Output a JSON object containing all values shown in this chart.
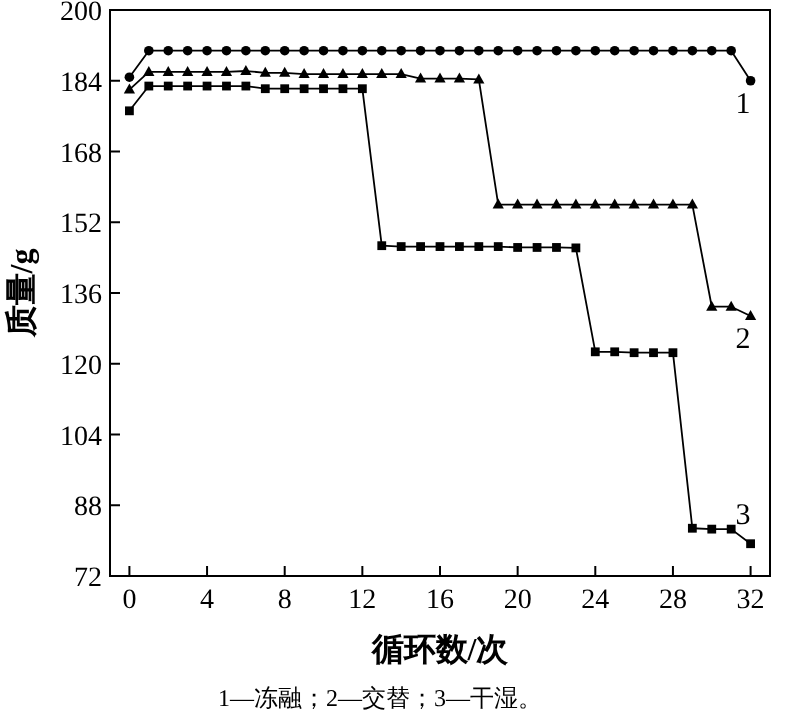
{
  "chart_data": {
    "type": "line",
    "xlabel": "循环数/次",
    "ylabel": "质量/g",
    "xlim": [
      -1,
      33
    ],
    "xticks": [
      0,
      4,
      8,
      12,
      16,
      20,
      24,
      28,
      32
    ],
    "ylim": [
      72,
      200
    ],
    "yticks": [
      72,
      88,
      104,
      120,
      136,
      152,
      168,
      184,
      200
    ],
    "grid": false,
    "line_style": "solid",
    "x": [
      0,
      1,
      2,
      3,
      4,
      5,
      6,
      7,
      8,
      9,
      10,
      11,
      12,
      13,
      14,
      15,
      16,
      17,
      18,
      19,
      20,
      21,
      22,
      23,
      24,
      25,
      26,
      27,
      28,
      29,
      30,
      31,
      32
    ],
    "series": [
      {
        "name": "1",
        "color": "#000000",
        "marker": "circle",
        "values": [
          184.8,
          190.8,
          190.8,
          190.8,
          190.8,
          190.8,
          190.8,
          190.8,
          190.8,
          190.8,
          190.8,
          190.8,
          190.8,
          190.8,
          190.8,
          190.8,
          190.8,
          190.8,
          190.8,
          190.8,
          190.8,
          190.8,
          190.8,
          190.8,
          190.8,
          190.8,
          190.8,
          190.8,
          190.8,
          190.8,
          190.8,
          190.8,
          184
        ]
      },
      {
        "name": "2",
        "color": "#000000",
        "marker": "triangle",
        "values": [
          182,
          186,
          186,
          186,
          186,
          186,
          186.2,
          185.8,
          185.8,
          185.5,
          185.5,
          185.5,
          185.5,
          185.5,
          185.5,
          184.5,
          184.5,
          184.5,
          184.3,
          156,
          156,
          156,
          156,
          156,
          156,
          156,
          156,
          156,
          156,
          156,
          132.9,
          132.9,
          130.8
        ]
      },
      {
        "name": "3",
        "color": "#000000",
        "marker": "square",
        "values": [
          177.2,
          182.8,
          182.8,
          182.8,
          182.8,
          182.8,
          182.8,
          182.2,
          182.2,
          182.2,
          182.2,
          182.2,
          182.2,
          146.7,
          146.5,
          146.5,
          146.5,
          146.5,
          146.5,
          146.5,
          146.3,
          146.3,
          146.3,
          146.2,
          122.7,
          122.7,
          122.5,
          122.5,
          122.5,
          82.8,
          82.6,
          82.6,
          79.3
        ]
      }
    ],
    "annotations": [
      "1—冻融；2—交替；3—干湿。"
    ]
  }
}
